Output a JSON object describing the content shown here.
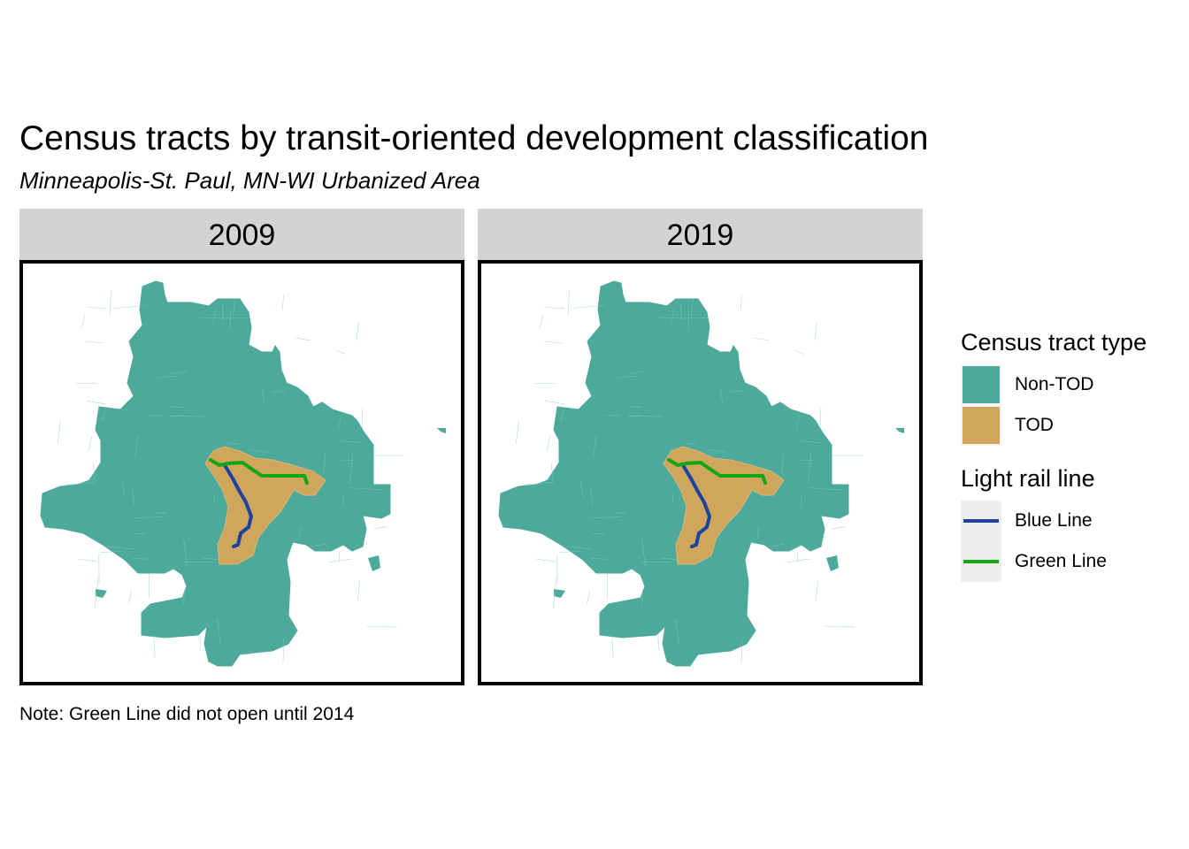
{
  "figure": {
    "title": "Census tracts by transit-oriented development classification",
    "subtitle": "Minneapolis-St. Paul, MN-WI Urbanized Area",
    "caption": "Note: Green Line did not open until 2014"
  },
  "panels": [
    {
      "year": "2009"
    },
    {
      "year": "2019"
    }
  ],
  "legend": {
    "tract_type": {
      "title": "Census tract type",
      "items": [
        {
          "label": "Non-TOD",
          "color": "#4da99c"
        },
        {
          "label": "TOD",
          "color": "#cfa65c"
        }
      ]
    },
    "rail_line": {
      "title": "Light rail line",
      "items": [
        {
          "label": "Blue Line",
          "color": "#1d43a0"
        },
        {
          "label": "Green Line",
          "color": "#12a612"
        }
      ]
    }
  }
}
